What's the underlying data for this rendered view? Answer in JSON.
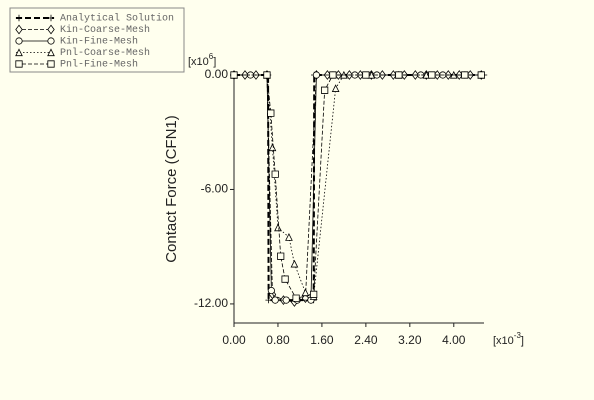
{
  "chart_data": {
    "type": "line",
    "y_label": "Contact Force (CFN1)",
    "y_multiplier": {
      "open": "[x10",
      "exp": "6",
      "close": "]"
    },
    "x_multiplier": {
      "open": "[x10",
      "exp": "-3",
      "close": "]"
    },
    "xlim": [
      0,
      4.55
    ],
    "ylim": [
      -13,
      0
    ],
    "xticks": [
      {
        "value": 0,
        "label": "0.00"
      },
      {
        "value": 0.8,
        "label": "0.80"
      },
      {
        "value": 1.6,
        "label": "1.60"
      },
      {
        "value": 2.4,
        "label": "2.40"
      },
      {
        "value": 3.2,
        "label": "3.20"
      },
      {
        "value": 4.0,
        "label": "4.00"
      }
    ],
    "yticks": [
      {
        "value": 0,
        "label": "0.00"
      },
      {
        "value": -6,
        "label": "-6.00"
      },
      {
        "value": -12,
        "label": "-12.00"
      }
    ],
    "legend": "top-left",
    "series": [
      {
        "name": "Analytical Solution",
        "color": "#000000",
        "style": "thick-dash",
        "marker": "plus",
        "x": [
          0,
          0.62,
          0.63,
          1.45,
          1.46,
          4.55
        ],
        "values": [
          0,
          0,
          -11.8,
          -11.8,
          0,
          0
        ]
      },
      {
        "name": "Kin-Coarse-Mesh",
        "color": "#000000",
        "style": "dash",
        "marker": "diamond",
        "x": [
          0,
          0.2,
          0.4,
          0.6,
          0.7,
          0.9,
          1.1,
          1.3,
          1.5,
          1.7,
          1.9,
          2.1,
          2.3,
          2.5,
          2.7,
          2.9,
          3.1,
          3.3,
          3.5,
          3.7,
          3.9,
          4.1,
          4.3,
          4.5
        ],
        "values": [
          0,
          0,
          0,
          0,
          -11.5,
          -11.8,
          -11.9,
          -11.7,
          0,
          0,
          0,
          0,
          0,
          0,
          0,
          0,
          0,
          0,
          0,
          0,
          0,
          0,
          0,
          0
        ]
      },
      {
        "name": "Kin-Fine-Mesh",
        "color": "#000000",
        "style": "solid",
        "marker": "circle",
        "x": [
          0,
          0.3,
          0.6,
          0.68,
          0.75,
          0.95,
          1.15,
          1.4,
          1.5,
          1.8,
          2.2,
          2.6,
          3.0,
          3.4,
          3.8,
          4.2,
          4.5
        ],
        "values": [
          0,
          0,
          0,
          -11.3,
          -11.8,
          -11.8,
          -11.8,
          -11.8,
          0,
          0,
          0,
          0,
          0,
          0,
          0,
          0,
          0
        ]
      },
      {
        "name": "Pnl-Coarse-Mesh",
        "color": "#000000",
        "style": "dot",
        "marker": "triangle",
        "x": [
          0,
          0.6,
          0.7,
          0.8,
          1.0,
          1.1,
          1.3,
          1.45,
          1.85,
          2.0,
          2.5,
          3.0,
          3.5,
          4.0,
          4.5
        ],
        "values": [
          0,
          0,
          -3.8,
          -8.0,
          -8.5,
          -9.9,
          -11.4,
          -11.6,
          -0.7,
          0,
          0,
          0,
          0,
          0,
          0
        ]
      },
      {
        "name": "Pnl-Fine-Mesh",
        "color": "#000000",
        "style": "dash",
        "marker": "square",
        "x": [
          0,
          0.6,
          0.67,
          0.75,
          0.85,
          0.93,
          1.13,
          1.45,
          1.65,
          1.8,
          2.4,
          3.0,
          3.6,
          4.2,
          4.5
        ],
        "values": [
          0,
          0,
          -2.0,
          -5.2,
          -9.5,
          -10.7,
          -11.7,
          -11.5,
          -0.8,
          0,
          0,
          0,
          0,
          0,
          0
        ]
      }
    ]
  }
}
